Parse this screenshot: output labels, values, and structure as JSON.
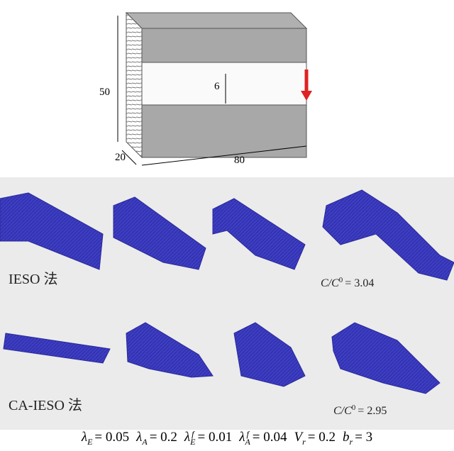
{
  "diagram": {
    "dimensions": {
      "height": "50",
      "depth": "20",
      "length": "80",
      "gap": "6"
    }
  },
  "results": [
    {
      "method": "IESO 法",
      "ratio": {
        "lhs": "C/C",
        "sup": "0",
        "rhs": "= 3.04"
      }
    },
    {
      "method": "CA-IESO 法",
      "ratio": {
        "lhs": "C/C",
        "sup": "0",
        "rhs": "= 2.95"
      }
    }
  ],
  "caption": {
    "params": [
      {
        "symbol": "λ",
        "sub": "E",
        "rest": "= 0.05"
      },
      {
        "symbol": "λ",
        "sub": "A",
        "rest": "= 0.2"
      },
      {
        "symbol": "λ",
        "sub": "E",
        "sup": "f",
        "rest": "= 0.01"
      },
      {
        "symbol": "λ",
        "sub": "A",
        "sup": "f",
        "rest": "= 0.04"
      },
      {
        "symbol": "V",
        "sub": "r",
        "rest": "= 0.2"
      },
      {
        "symbol": "b",
        "sub": "r",
        "rest": "= 3"
      }
    ]
  }
}
